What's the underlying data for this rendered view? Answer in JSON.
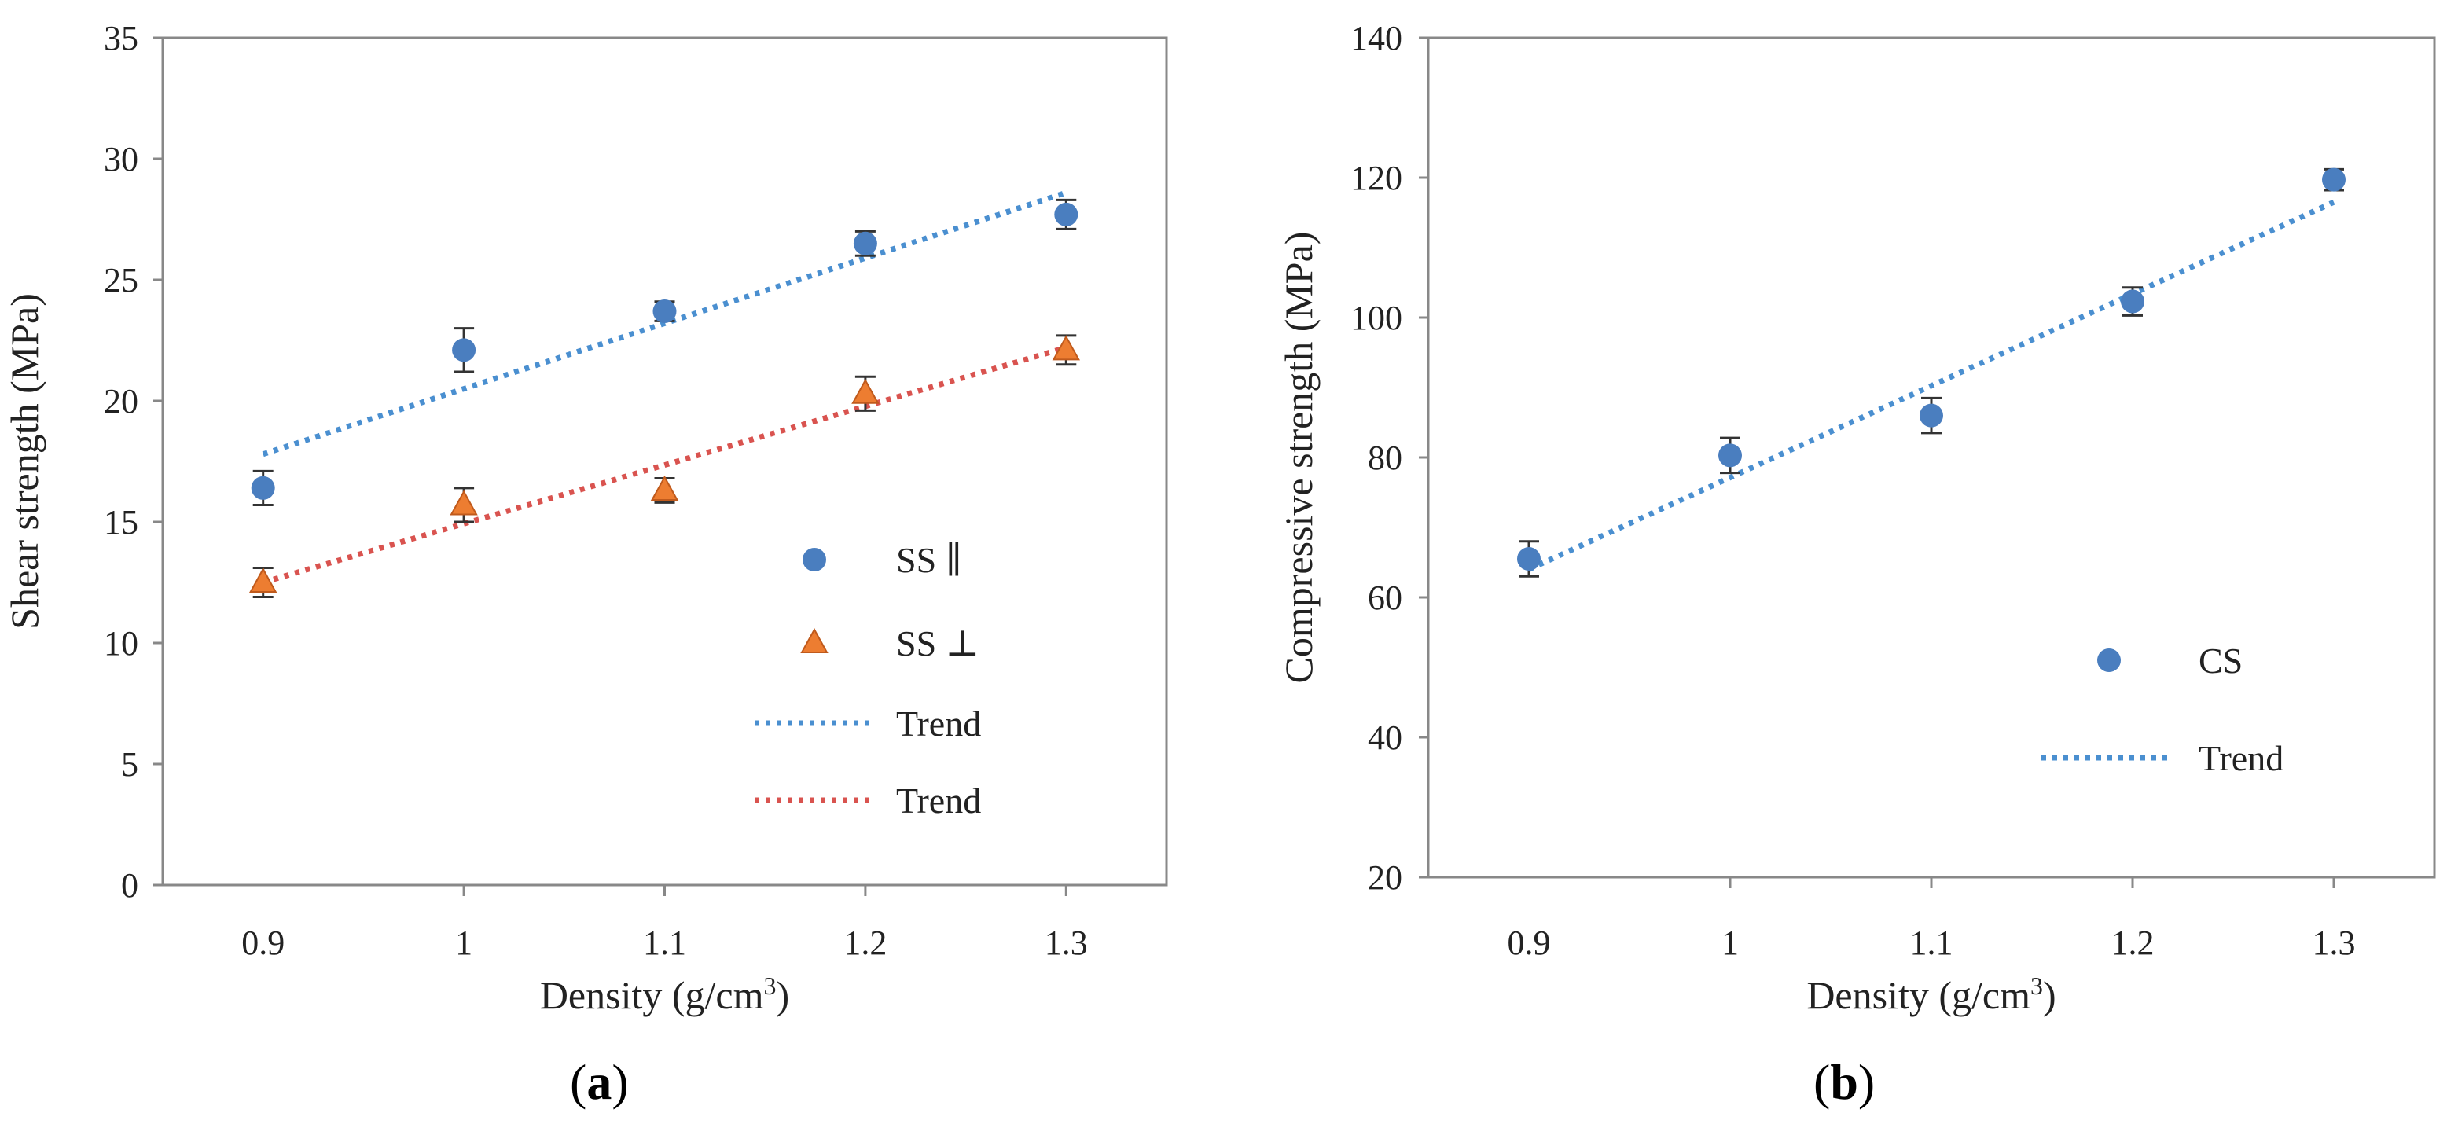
{
  "chart_data": [
    {
      "type": "scatter",
      "panel_label": "a",
      "title": "",
      "xlabel": "Density (g/cm³)",
      "xlabel_base": "Density (g/cm",
      "xlabel_sup": "3",
      "xlabel_end": ")",
      "ylabel": "Shear strength (MPa)",
      "xlim": [
        0.85,
        1.35
      ],
      "ylim": [
        0,
        35
      ],
      "x_ticks": [
        0.9,
        1.0,
        1.1,
        1.2,
        1.3
      ],
      "x_tick_labels": [
        "0.9",
        "1",
        "1.1",
        "1.2",
        "1.3"
      ],
      "y_ticks": [
        0,
        5,
        10,
        15,
        20,
        25,
        30,
        35
      ],
      "y_tick_labels": [
        "0",
        "5",
        "10",
        "15",
        "20",
        "25",
        "30",
        "35"
      ],
      "grid": false,
      "legend_position": "bottom-right",
      "series": [
        {
          "name": "SS //",
          "legend_label": "SS ∥",
          "marker": "circle",
          "color": "#4a7ebf",
          "x": [
            0.9,
            1.0,
            1.1,
            1.2,
            1.3
          ],
          "y": [
            16.4,
            22.1,
            23.7,
            26.5,
            27.7
          ],
          "err": [
            0.7,
            0.9,
            0.4,
            0.5,
            0.6
          ]
        },
        {
          "name": "SS ⊥",
          "legend_label": "SS ⊥",
          "marker": "triangle",
          "color": "#ed7d31",
          "x": [
            0.9,
            1.0,
            1.1,
            1.2,
            1.3
          ],
          "y": [
            12.5,
            15.7,
            16.3,
            20.3,
            22.1
          ],
          "err": [
            0.6,
            0.7,
            0.5,
            0.7,
            0.6
          ]
        }
      ],
      "trends": [
        {
          "name": "Trend",
          "legend_label": "Trend",
          "color": "#4a8fd0",
          "x": [
            0.9,
            1.3
          ],
          "y": [
            17.8,
            28.6
          ]
        },
        {
          "name": "Trend",
          "legend_label": "Trend",
          "color": "#d9534f",
          "x": [
            0.9,
            1.3
          ],
          "y": [
            12.5,
            22.2
          ]
        }
      ]
    },
    {
      "type": "scatter",
      "panel_label": "b",
      "title": "",
      "xlabel": "Density (g/cm³)",
      "xlabel_base": "Density (g/cm",
      "xlabel_sup": "3",
      "xlabel_end": ")",
      "ylabel": "Compressive strength (MPa)",
      "xlim": [
        0.85,
        1.35
      ],
      "ylim": [
        20,
        140
      ],
      "x_ticks": [
        0.9,
        1.0,
        1.1,
        1.2,
        1.3
      ],
      "x_tick_labels": [
        "0.9",
        "1",
        "1.1",
        "1.2",
        "1.3"
      ],
      "y_ticks": [
        20,
        40,
        60,
        80,
        100,
        120,
        140
      ],
      "y_tick_labels": [
        "20",
        "40",
        "60",
        "80",
        "100",
        "120",
        "140"
      ],
      "grid": false,
      "legend_position": "bottom-right",
      "series": [
        {
          "name": "CS",
          "legend_label": "CS",
          "marker": "circle",
          "color": "#4a7ebf",
          "x": [
            0.9,
            1.0,
            1.1,
            1.2,
            1.3
          ],
          "y": [
            65.5,
            80.3,
            86.0,
            102.3,
            119.7
          ],
          "err": [
            2.5,
            2.5,
            2.5,
            2.0,
            1.5
          ]
        }
      ],
      "trends": [
        {
          "name": "Trend",
          "legend_label": "Trend",
          "color": "#4a8fd0",
          "x": [
            0.9,
            1.3
          ],
          "y": [
            64.0,
            116.5
          ]
        }
      ]
    }
  ]
}
